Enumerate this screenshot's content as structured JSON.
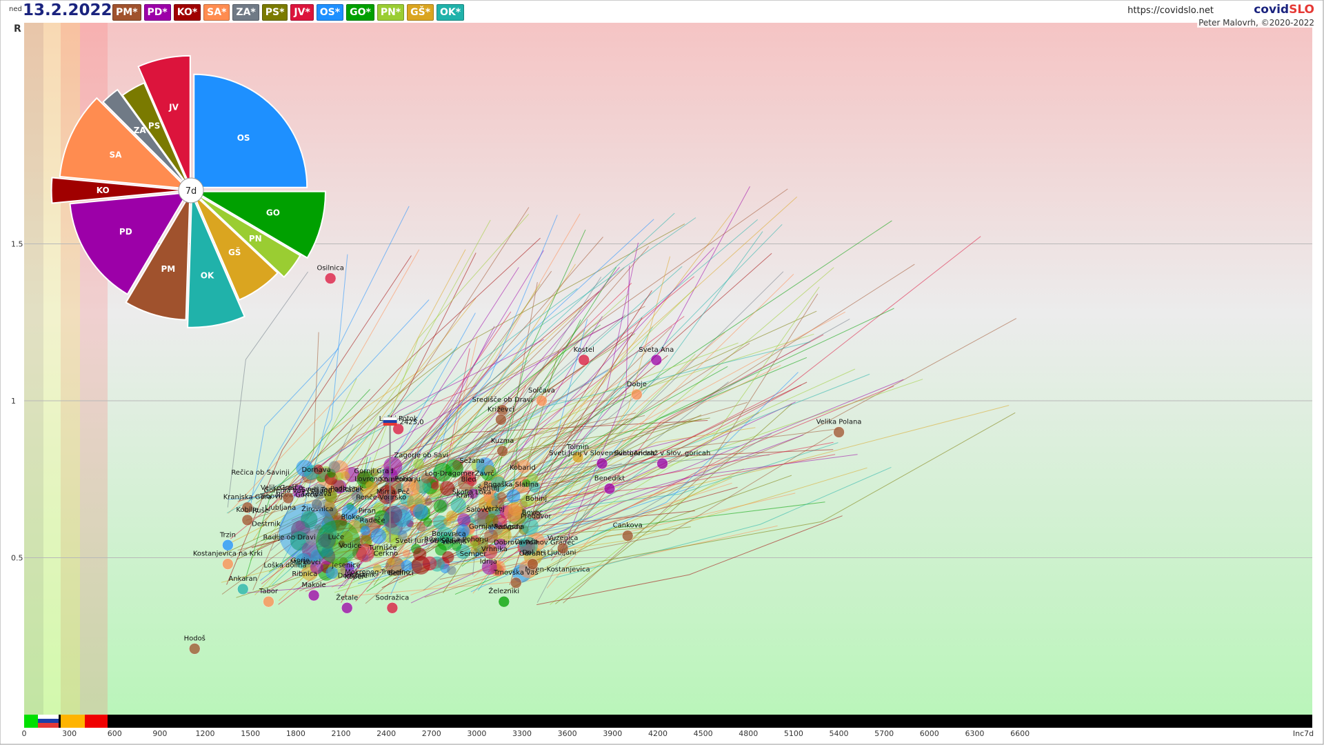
{
  "header": {
    "date_prefix": "ned",
    "date": "13.2.2022",
    "site_url": "https://covidslo.net",
    "brand_part1": "covid",
    "brand_part2": "SLO",
    "author": "Peter Malovrh, ©2020-2022"
  },
  "legend_chips": [
    {
      "label": "PM*",
      "color": "#a0522d"
    },
    {
      "label": "PD*",
      "color": "#9c00a8"
    },
    {
      "label": "KO*",
      "color": "#a00000"
    },
    {
      "label": "SA*",
      "color": "#ff8c50"
    },
    {
      "label": "ZA*",
      "color": "#707a86"
    },
    {
      "label": "PS*",
      "color": "#7a7a00"
    },
    {
      "label": "JV*",
      "color": "#dc143c"
    },
    {
      "label": "OS*",
      "color": "#1e90ff"
    },
    {
      "label": "GO*",
      "color": "#00a000"
    },
    {
      "label": "PN*",
      "color": "#9acd32"
    },
    {
      "label": "GŠ*",
      "color": "#daa520"
    },
    {
      "label": "OK*",
      "color": "#20b2aa"
    }
  ],
  "chart_data": [
    {
      "type": "scatter",
      "title": "",
      "xlabel": "Inc7d",
      "ylabel": "R",
      "x_ticks": [
        "0",
        "300",
        "600",
        "900",
        "1200",
        "1500",
        "1800",
        "2100",
        "2400",
        "2700",
        "3000",
        "3300",
        "3600",
        "3900",
        "4200",
        "4500",
        "4800",
        "5100",
        "5400",
        "5700",
        "6000",
        "6300",
        "6600",
        "Inc7d"
      ],
      "y_ticks": [
        "0.5",
        "1",
        "1.5"
      ],
      "xlim": [
        0,
        6900
      ],
      "ylim": [
        0,
        1.85
      ],
      "grid": true,
      "slovenia_marker": {
        "label": "2425,0",
        "x": 2425,
        "y": 1.0
      },
      "points": [
        {
          "name": "Osilnica",
          "x": 2030,
          "y": 1.39,
          "color": "#dc143c"
        },
        {
          "name": "Kostel",
          "x": 3710,
          "y": 1.13,
          "color": "#dc143c"
        },
        {
          "name": "Sveta Ana",
          "x": 4190,
          "y": 1.13,
          "color": "#9c00a8"
        },
        {
          "name": "Dobje",
          "x": 4060,
          "y": 1.02,
          "color": "#ff8c50"
        },
        {
          "name": "Solčava",
          "x": 3430,
          "y": 1.0,
          "color": "#ff8c50"
        },
        {
          "name": "Središče ob Dravi",
          "x": 3170,
          "y": 0.97,
          "color": "#a0522d"
        },
        {
          "name": "Križevci",
          "x": 3160,
          "y": 0.94,
          "color": "#a0522d"
        },
        {
          "name": "Loški Potok",
          "x": 2480,
          "y": 0.91,
          "color": "#dc143c"
        },
        {
          "name": "Velika Polana",
          "x": 5400,
          "y": 0.9,
          "color": "#a0522d"
        },
        {
          "name": "Kuzma",
          "x": 3170,
          "y": 0.84,
          "color": "#a0522d"
        },
        {
          "name": "Tolmin",
          "x": 3670,
          "y": 0.82,
          "color": "#daa520"
        },
        {
          "name": "Sveti Jurij v Slovenskih goricah",
          "x": 3830,
          "y": 0.8,
          "color": "#9c00a8"
        },
        {
          "name": "Sveti Andraž v Slov. goricah",
          "x": 4230,
          "y": 0.8,
          "color": "#9c00a8"
        },
        {
          "name": "Benedikt",
          "x": 3880,
          "y": 0.72,
          "color": "#9c00a8"
        },
        {
          "name": "Kranjska Gora",
          "x": 1480,
          "y": 0.66,
          "color": "#a0522d"
        },
        {
          "name": "Kobilje",
          "x": 1480,
          "y": 0.62,
          "color": "#a0522d"
        },
        {
          "name": "Grad",
          "x": 1750,
          "y": 0.69,
          "color": "#a0522d"
        },
        {
          "name": "Lendava",
          "x": 1940,
          "y": 0.67,
          "color": "#707a86"
        },
        {
          "name": "Cankova",
          "x": 4000,
          "y": 0.57,
          "color": "#a0522d"
        },
        {
          "name": "Vuzenica",
          "x": 3570,
          "y": 0.53,
          "color": "#a0522d"
        },
        {
          "name": "Trzin",
          "x": 1350,
          "y": 0.54,
          "color": "#1e90ff"
        },
        {
          "name": "Kostanjevica na Krki",
          "x": 1350,
          "y": 0.48,
          "color": "#ff8c50"
        },
        {
          "name": "Ankaran",
          "x": 1450,
          "y": 0.4,
          "color": "#20b2aa"
        },
        {
          "name": "Tabor",
          "x": 1620,
          "y": 0.36,
          "color": "#ff8c50"
        },
        {
          "name": "Makole",
          "x": 1920,
          "y": 0.38,
          "color": "#9c00a8"
        },
        {
          "name": "Žetale",
          "x": 2140,
          "y": 0.34,
          "color": "#9c00a8"
        },
        {
          "name": "Sodražica",
          "x": 2440,
          "y": 0.34,
          "color": "#dc143c"
        },
        {
          "name": "Železniki",
          "x": 3180,
          "y": 0.36,
          "color": "#00a000"
        },
        {
          "name": "Trnovska vas",
          "x": 3260,
          "y": 0.42,
          "color": "#a0522d"
        },
        {
          "name": "Odranci",
          "x": 3370,
          "y": 0.48,
          "color": "#a0522d"
        },
        {
          "name": "Hodoš",
          "x": 1130,
          "y": 0.21,
          "color": "#a0522d"
        }
      ],
      "background_labels": [
        "Bled",
        "Bloke",
        "Vodice",
        "Sežana",
        "Bohinj",
        "Žirovnica",
        "Medvode",
        "Šalovci",
        "Velike Lašče",
        "Piran",
        "Ljubljana",
        "Jesenice",
        "Kranj",
        "Koper",
        "Ribnica",
        "Loška dolina",
        "Vrhnika",
        "Rečica ob Savinji",
        "Dol pri Ljubljani",
        "Veržej",
        "Dornava",
        "Sveti Jurij ob Ščavnici",
        "Ribnica na Pohorju",
        "Destrnik",
        "Podlehnik",
        "Zavrč",
        "Kobarid",
        "Komenda",
        "Radeče",
        "Ruše",
        "Gornji Grad",
        "Bovec",
        "Rogaška Slatina",
        "Turnišče",
        "Borovnica",
        "Log-Dragomer",
        "Divača",
        "Dobrova-Polhov Gradec",
        "Idrija",
        "Radlje ob Dravi",
        "Trbovlje",
        "Zagorje ob Savi",
        "Mirna Peč",
        "Lovrenc na Pohorju",
        "Rače",
        "Sveti Tomaž",
        "Hrastnik",
        "Renče-Vogrsko",
        "Šentilj",
        "Gorenja vas-Poljane",
        "Markovci",
        "Mokronog-Trebelno",
        "Gorje",
        "Preddvor",
        "Beltinci",
        "Škofja Loka",
        "Miren-Kostanjevica",
        "Domžale",
        "Nova Gorica",
        "Semper",
        "Luče",
        "Gornja Radgona",
        "Cerkno",
        "Velenje"
      ]
    },
    {
      "type": "pie",
      "center_label": "7d",
      "slices": [
        {
          "label": "OS",
          "value": 25.0,
          "color": "#1e90ff"
        },
        {
          "label": "GO",
          "value": 8.5,
          "color": "#00a000"
        },
        {
          "label": "PN",
          "value": 3.5,
          "color": "#9acd32"
        },
        {
          "label": "GŠ",
          "value": 6.5,
          "color": "#daa520"
        },
        {
          "label": "OK",
          "value": 7.0,
          "color": "#20b2aa"
        },
        {
          "label": "PM",
          "value": 8.0,
          "color": "#a0522d"
        },
        {
          "label": "PD",
          "value": 15.0,
          "color": "#9c00a8"
        },
        {
          "label": "KO",
          "value": 3.0,
          "color": "#a00000"
        },
        {
          "label": "SA",
          "value": 11.0,
          "color": "#ff8c50"
        },
        {
          "label": "ZA",
          "value": 2.5,
          "color": "#707a86"
        },
        {
          "label": "PS",
          "value": 3.5,
          "color": "#7a7a00"
        },
        {
          "label": "JV",
          "value": 6.5,
          "color": "#dc143c"
        }
      ]
    }
  ]
}
